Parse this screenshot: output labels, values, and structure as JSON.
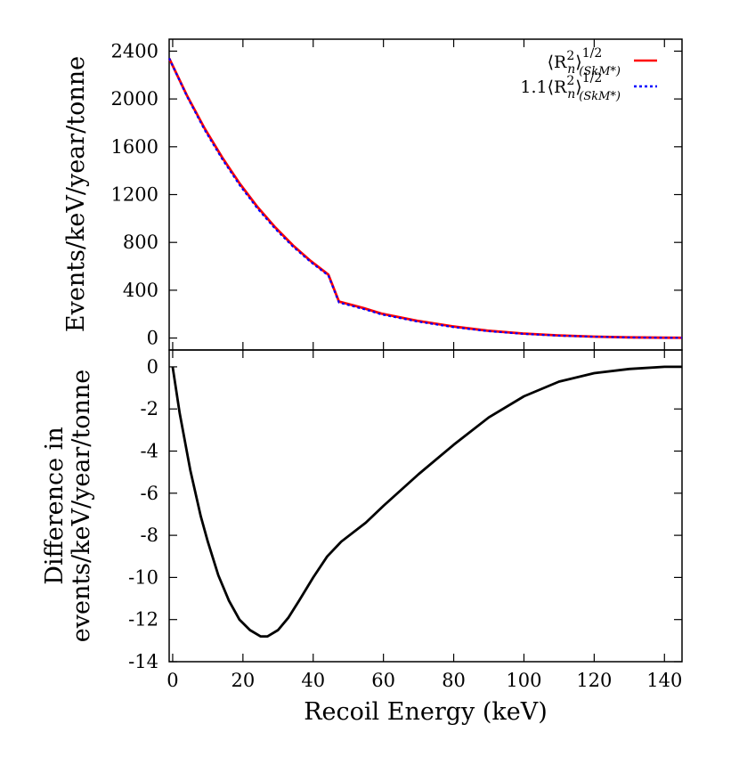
{
  "chart_data": [
    {
      "type": "line",
      "xlabel": "",
      "ylabel": "Events/keV/year/tonne",
      "xlim": [
        0,
        145
      ],
      "ylim": [
        -100,
        2500
      ],
      "x_ticks": [],
      "y_ticks": [
        "0",
        "400",
        "800",
        "1200",
        "1600",
        "2000",
        "2400"
      ],
      "y_tick_values": [
        0,
        400,
        800,
        1200,
        1600,
        2000,
        2400
      ],
      "legend_placement": "top-right",
      "series": [
        {
          "name_parts": {
            "pre": "",
            "core": "⟨R",
            "sup1": "2",
            "sub1": "n",
            "close": "⟩",
            "exp": "1/2",
            "subscript": "(SkM*)"
          },
          "color": "#ff0000",
          "style": "solid",
          "x": [
            0,
            5,
            10,
            15,
            20,
            25,
            30,
            35,
            40,
            45,
            48,
            55,
            60,
            70,
            80,
            90,
            100,
            110,
            120,
            130,
            140,
            145
          ],
          "y": [
            2340,
            2030,
            1755,
            1510,
            1290,
            1095,
            925,
            775,
            645,
            530,
            305,
            250,
            205,
            145,
            98,
            62,
            38,
            22,
            12,
            6,
            3,
            2
          ]
        },
        {
          "name_parts": {
            "pre": "1.1",
            "core": "⟨R",
            "sup1": "2",
            "sub1": "n",
            "close": "⟩",
            "exp": "1/2",
            "subscript": "(SkM*)"
          },
          "color": "#0000ff",
          "style": "dotted",
          "x": [
            0,
            5,
            10,
            15,
            20,
            25,
            30,
            35,
            40,
            45,
            48,
            55,
            60,
            70,
            80,
            90,
            100,
            110,
            120,
            130,
            140,
            145
          ],
          "y": [
            2340,
            2023,
            1743,
            1497,
            1277,
            1083,
            913,
            765,
            637,
            523,
            297,
            243,
            198,
            139,
            93,
            58,
            35,
            20,
            11,
            5,
            2,
            2
          ]
        }
      ]
    },
    {
      "type": "line",
      "xlabel": "Recoil Energy (keV)",
      "ylabel_lines": [
        "Difference in",
        "events/keV/year/tonne"
      ],
      "xlim": [
        -1,
        145
      ],
      "ylim": [
        -14,
        0.8
      ],
      "x_ticks": [
        "0",
        "20",
        "40",
        "60",
        "80",
        "100",
        "120",
        "140"
      ],
      "x_tick_values": [
        0,
        20,
        40,
        60,
        80,
        100,
        120,
        140
      ],
      "y_ticks": [
        "0",
        "-2",
        "-4",
        "-6",
        "-8",
        "-10",
        "-12",
        "-14"
      ],
      "y_tick_values": [
        0,
        -2,
        -4,
        -6,
        -8,
        -10,
        -12,
        -14
      ],
      "series": [
        {
          "color": "#000000",
          "style": "solid",
          "x": [
            0,
            2,
            5,
            8,
            10,
            13,
            16,
            19,
            22,
            25,
            27,
            30,
            33,
            36,
            40,
            44,
            48,
            55,
            60,
            70,
            80,
            90,
            100,
            110,
            120,
            130,
            140,
            145
          ],
          "y": [
            0,
            -2.2,
            -4.9,
            -7.1,
            -8.3,
            -9.9,
            -11.1,
            -12.0,
            -12.5,
            -12.8,
            -12.8,
            -12.5,
            -11.9,
            -11.1,
            -10.0,
            -9.0,
            -8.3,
            -7.4,
            -6.6,
            -5.1,
            -3.7,
            -2.4,
            -1.4,
            -0.7,
            -0.3,
            -0.1,
            0,
            0
          ]
        }
      ]
    }
  ]
}
